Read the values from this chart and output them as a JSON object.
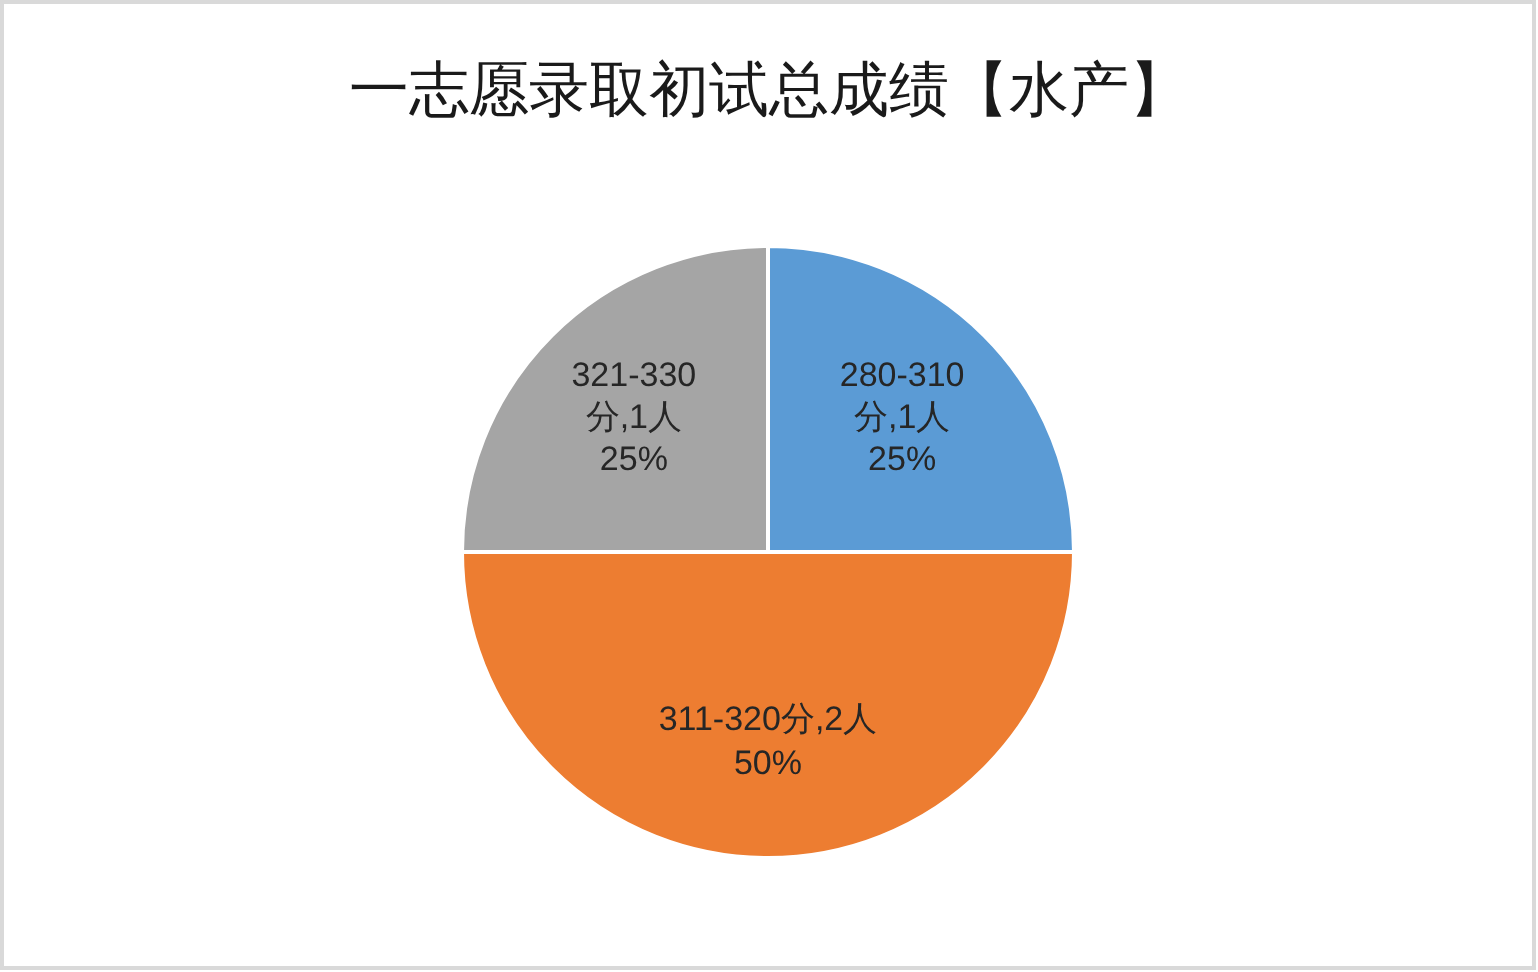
{
  "chart_data": {
    "type": "pie",
    "title": "一志愿录取初试总成绩【水产】",
    "categories": [
      "280-310分,1人",
      "311-320分,2人",
      "321-330分,1人"
    ],
    "values": [
      25,
      50,
      25
    ],
    "value_labels": [
      "25%",
      "50%",
      "25%"
    ],
    "colors": [
      "#5b9bd5",
      "#ed7d31",
      "#a5a5a5"
    ]
  }
}
